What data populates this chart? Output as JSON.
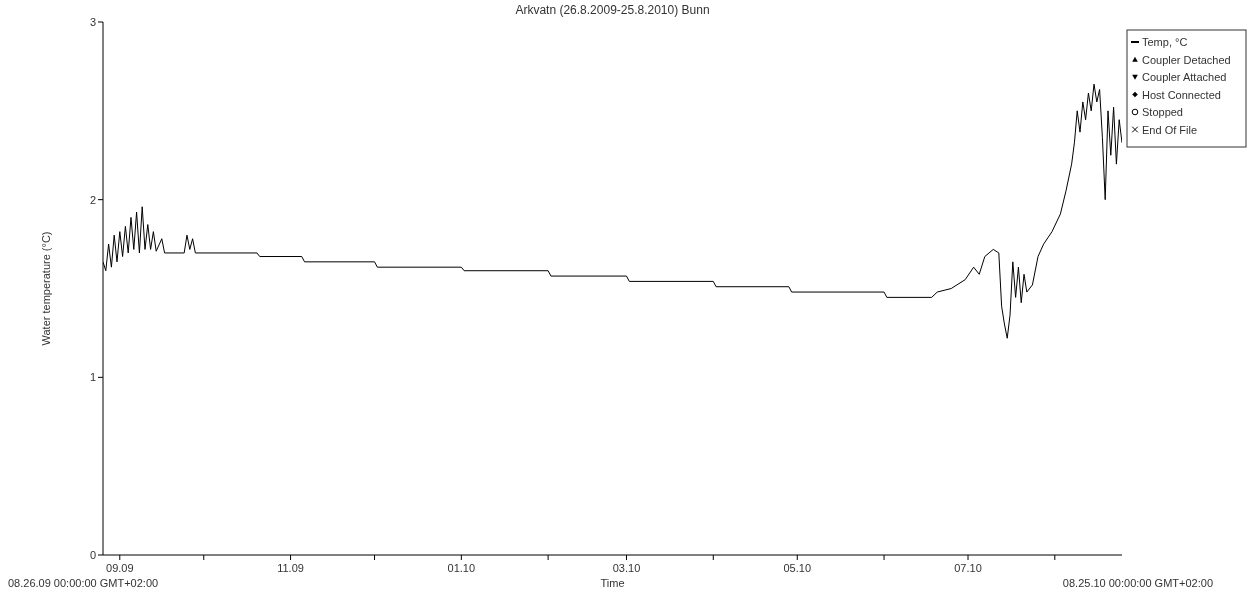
{
  "chart_data": {
    "type": "line",
    "title": "Arkvatn (26.8.2009-25.8.2010) Bunn",
    "xlabel": "Time",
    "ylabel": "Water temperature (°C)",
    "annotations": [
      "08.26.09 00:00:00 GMT+02:00",
      "08.25.10 00:00:00 GMT+02:00"
    ],
    "xlim": [
      "2009-08-26",
      "2010-08-25"
    ],
    "xticks": [
      {
        "value": "2009-09-01",
        "label": "09.09"
      },
      {
        "value": "2009-10-01",
        "label": null
      },
      {
        "value": "2009-11-01",
        "label": "11.09"
      },
      {
        "value": "2009-12-01",
        "label": null
      },
      {
        "value": "2010-01-01",
        "label": "01.10"
      },
      {
        "value": "2010-02-01",
        "label": null
      },
      {
        "value": "2010-03-01",
        "label": "03.10"
      },
      {
        "value": "2010-04-01",
        "label": null
      },
      {
        "value": "2010-05-01",
        "label": "05.10"
      },
      {
        "value": "2010-06-01",
        "label": null
      },
      {
        "value": "2010-07-01",
        "label": "07.10"
      },
      {
        "value": "2010-08-01",
        "label": null
      }
    ],
    "ylim": [
      0,
      3
    ],
    "yticks": [
      0,
      1,
      2,
      3
    ],
    "grid": false,
    "legend": "top right",
    "line_style": "solid",
    "series": [
      {
        "name": "Temp, °C",
        "color": "#000000",
        "marker": "none",
        "x": [
          "2009-08-26",
          "2009-08-27",
          "2009-08-28",
          "2009-08-29",
          "2009-08-30",
          "2009-08-31",
          "2009-09-01",
          "2009-09-02",
          "2009-09-03",
          "2009-09-04",
          "2009-09-05",
          "2009-09-06",
          "2009-09-07",
          "2009-09-08",
          "2009-09-09",
          "2009-09-10",
          "2009-09-11",
          "2009-09-12",
          "2009-09-13",
          "2009-09-14",
          "2009-09-16",
          "2009-09-17",
          "2009-09-24",
          "2009-09-25",
          "2009-09-26",
          "2009-09-27",
          "2009-09-28",
          "2009-10-20",
          "2009-10-21",
          "2009-11-05",
          "2009-11-06",
          "2009-12-01",
          "2009-12-02",
          "2010-01-01",
          "2010-01-02",
          "2010-02-01",
          "2010-02-02",
          "2010-03-01",
          "2010-03-02",
          "2010-04-01",
          "2010-04-02",
          "2010-04-28",
          "2010-04-29",
          "2010-06-01",
          "2010-06-02",
          "2010-06-18",
          "2010-06-20",
          "2010-06-25",
          "2010-06-30",
          "2010-07-03",
          "2010-07-05",
          "2010-07-07",
          "2010-07-10",
          "2010-07-12",
          "2010-07-13",
          "2010-07-14",
          "2010-07-15",
          "2010-07-16",
          "2010-07-17",
          "2010-07-18",
          "2010-07-19",
          "2010-07-20",
          "2010-07-21",
          "2010-07-22",
          "2010-07-24",
          "2010-07-26",
          "2010-07-28",
          "2010-07-31",
          "2010-08-03",
          "2010-08-05",
          "2010-08-07",
          "2010-08-08",
          "2010-08-09",
          "2010-08-10",
          "2010-08-11",
          "2010-08-12",
          "2010-08-13",
          "2010-08-14",
          "2010-08-15",
          "2010-08-16",
          "2010-08-17",
          "2010-08-18",
          "2010-08-19",
          "2010-08-20",
          "2010-08-21",
          "2010-08-22",
          "2010-08-23",
          "2010-08-24",
          "2010-08-25"
        ],
        "values": [
          1.65,
          1.6,
          1.75,
          1.62,
          1.8,
          1.65,
          1.82,
          1.68,
          1.85,
          1.7,
          1.9,
          1.72,
          1.93,
          1.7,
          1.96,
          1.72,
          1.86,
          1.72,
          1.82,
          1.71,
          1.78,
          1.7,
          1.7,
          1.8,
          1.72,
          1.78,
          1.7,
          1.7,
          1.68,
          1.68,
          1.65,
          1.65,
          1.62,
          1.62,
          1.6,
          1.6,
          1.57,
          1.57,
          1.54,
          1.54,
          1.51,
          1.51,
          1.48,
          1.48,
          1.45,
          1.45,
          1.48,
          1.5,
          1.55,
          1.62,
          1.58,
          1.68,
          1.72,
          1.7,
          1.4,
          1.3,
          1.22,
          1.35,
          1.65,
          1.45,
          1.62,
          1.42,
          1.58,
          1.48,
          1.52,
          1.68,
          1.75,
          1.82,
          1.92,
          2.05,
          2.2,
          2.32,
          2.5,
          2.38,
          2.55,
          2.45,
          2.6,
          2.5,
          2.65,
          2.55,
          2.62,
          2.35,
          2.0,
          2.5,
          2.25,
          2.52,
          2.2,
          2.45,
          2.32
        ]
      },
      {
        "name": "Coupler Detached",
        "color": "#000000",
        "type": "scatter",
        "marker": "triangle"
      },
      {
        "name": "Coupler Attached",
        "color": "#000000",
        "type": "scatter",
        "marker": "triangle-down"
      },
      {
        "name": "Host Connected",
        "color": "#000000",
        "type": "scatter",
        "marker": "diamond"
      },
      {
        "name": "Stopped",
        "color": "#000000",
        "type": "scatter",
        "marker": "circle"
      },
      {
        "name": "End Of File",
        "color": "#000000",
        "type": "scatter",
        "marker": "cross"
      }
    ]
  }
}
